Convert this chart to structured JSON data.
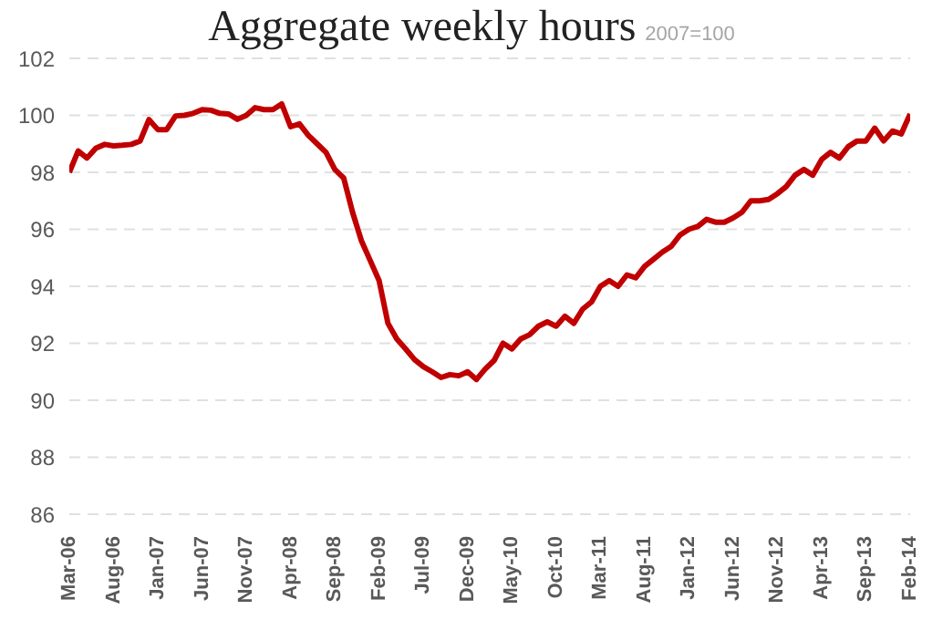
{
  "chart_data": {
    "type": "line",
    "title": "Aggregate weekly hours",
    "subtitle": "2007=100",
    "categories": [
      "Mar-06",
      null,
      null,
      null,
      null,
      "Aug-06",
      null,
      null,
      null,
      null,
      "Jan-07",
      null,
      null,
      null,
      null,
      "Jun-07",
      null,
      null,
      null,
      null,
      "Nov-07",
      null,
      null,
      null,
      null,
      "Apr-08",
      null,
      null,
      null,
      null,
      "Sep-08",
      null,
      null,
      null,
      null,
      "Feb-09",
      null,
      null,
      null,
      null,
      "Jul-09",
      null,
      null,
      null,
      null,
      "Dec-09",
      null,
      null,
      null,
      null,
      "May-10",
      null,
      null,
      null,
      null,
      "Oct-10",
      null,
      null,
      null,
      null,
      "Mar-11",
      null,
      null,
      null,
      null,
      "Aug-11",
      null,
      null,
      null,
      null,
      "Jan-12",
      null,
      null,
      null,
      null,
      "Jun-12",
      null,
      null,
      null,
      null,
      "Nov-12",
      null,
      null,
      null,
      null,
      "Apr-13",
      null,
      null,
      null,
      null,
      "Sep-13",
      null,
      null,
      null,
      null,
      "Feb-14"
    ],
    "series": [
      {
        "color": "#c00000",
        "values": [
          98.0,
          98.75,
          98.5,
          98.85,
          98.98,
          98.93,
          98.95,
          98.98,
          99.1,
          99.85,
          99.5,
          99.5,
          99.98,
          100.0,
          100.07,
          100.2,
          100.18,
          100.07,
          100.05,
          99.86,
          100.0,
          100.27,
          100.2,
          100.2,
          100.4,
          99.6,
          99.7,
          99.3,
          99.0,
          98.7,
          98.1,
          97.8,
          96.6,
          95.6,
          94.9,
          94.2,
          92.7,
          92.15,
          91.8,
          91.43,
          91.18,
          91.0,
          90.8,
          90.9,
          90.86,
          91.0,
          90.73,
          91.1,
          91.4,
          92.0,
          91.8,
          92.15,
          92.3,
          92.6,
          92.75,
          92.6,
          92.95,
          92.7,
          93.2,
          93.45,
          94.0,
          94.2,
          94.0,
          94.4,
          94.3,
          94.7,
          94.95,
          95.2,
          95.4,
          95.8,
          96.0,
          96.1,
          96.35,
          96.25,
          96.25,
          96.4,
          96.6,
          97.0,
          97.0,
          97.05,
          97.25,
          97.5,
          97.9,
          98.1,
          97.9,
          98.45,
          98.7,
          98.5,
          98.9,
          99.1,
          99.1,
          99.55,
          99.1,
          99.45,
          99.35,
          100.05
        ]
      }
    ],
    "ylim": [
      86,
      102
    ],
    "yticks": [
      86,
      88,
      90,
      92,
      94,
      96,
      98,
      100,
      102
    ],
    "grid": "y",
    "marker": "none",
    "line_style": "solid"
  }
}
